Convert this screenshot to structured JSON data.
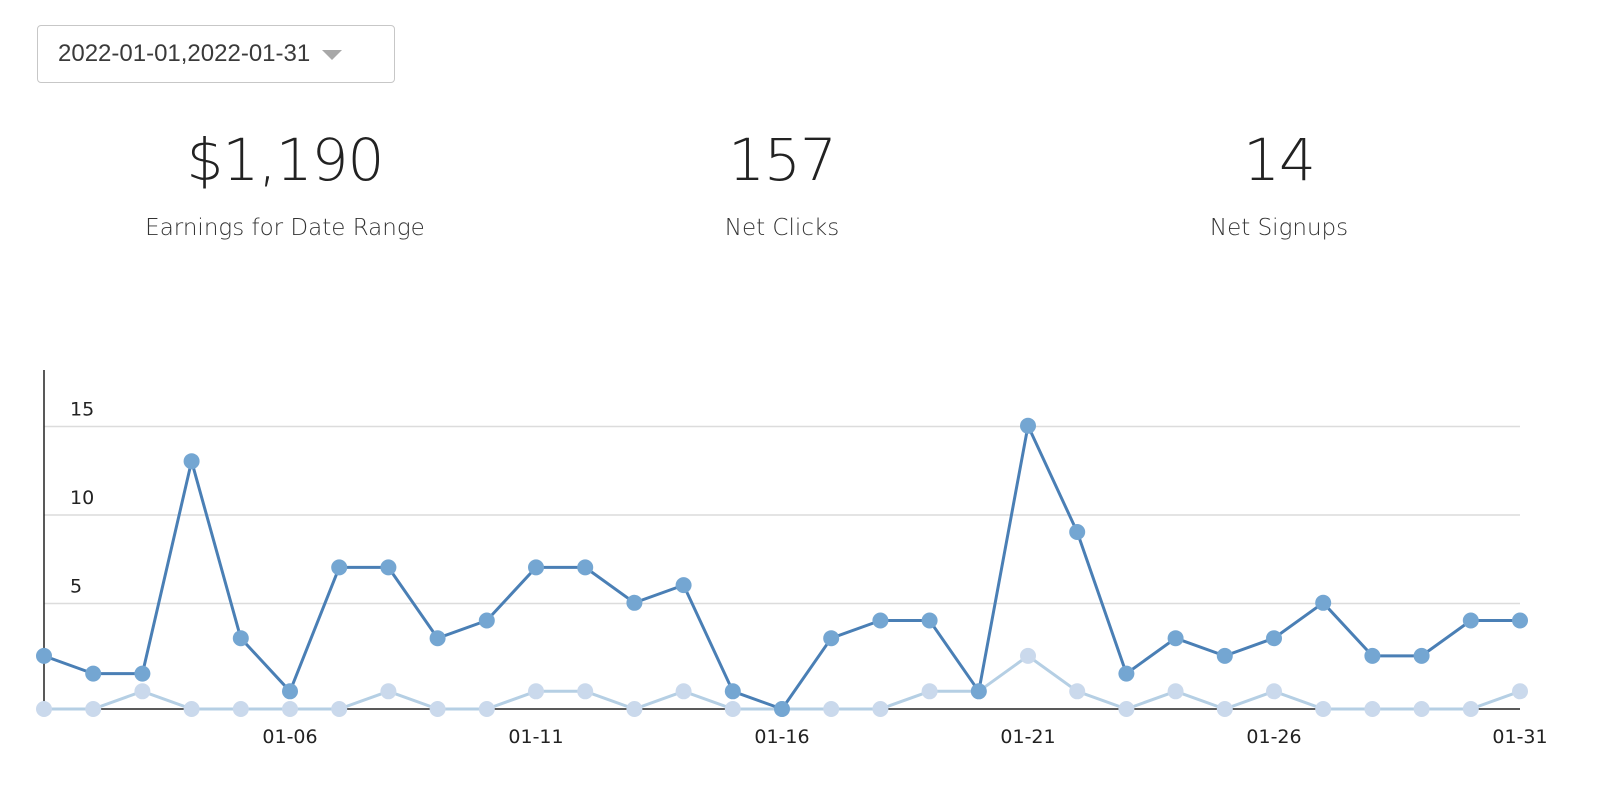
{
  "date_range": {
    "value": "2022-01-01,2022-01-31",
    "caret_icon": "chevron-down-icon"
  },
  "stats": [
    {
      "value": "$1,190",
      "label": "Earnings for Date Range"
    },
    {
      "value": "157",
      "label": "Net Clicks"
    },
    {
      "value": "14",
      "label": "Net Signups"
    }
  ],
  "chart_data": {
    "type": "line",
    "x": [
      "01-01",
      "01-02",
      "01-03",
      "01-04",
      "01-05",
      "01-06",
      "01-07",
      "01-08",
      "01-09",
      "01-10",
      "01-11",
      "01-12",
      "01-13",
      "01-14",
      "01-15",
      "01-16",
      "01-17",
      "01-18",
      "01-19",
      "01-20",
      "01-21",
      "01-22",
      "01-23",
      "01-24",
      "01-25",
      "01-26",
      "01-27",
      "01-28",
      "01-29",
      "01-30",
      "01-31"
    ],
    "x_tick_labels": [
      "01-06",
      "01-11",
      "01-16",
      "01-21",
      "01-26",
      "01-31"
    ],
    "y_tick_labels": [
      "5",
      "10",
      "15"
    ],
    "ylim": [
      0,
      17
    ],
    "grid": true,
    "series": [
      {
        "color": "#4a7fb5",
        "marker_color": "#74a6d2",
        "values": [
          3,
          2,
          2,
          14,
          4,
          1,
          8,
          8,
          4,
          5,
          8,
          8,
          6,
          7,
          1,
          0,
          4,
          5,
          5,
          1,
          16,
          10,
          2,
          4,
          3,
          4,
          6,
          3,
          3,
          5,
          5
        ]
      },
      {
        "color": "#b5cfe4",
        "marker_color": "#cad9ec",
        "values": [
          0,
          0,
          1,
          0,
          0,
          0,
          0,
          1,
          0,
          0,
          1,
          1,
          0,
          1,
          0,
          0,
          0,
          0,
          1,
          1,
          3,
          1,
          0,
          1,
          0,
          1,
          0,
          0,
          0,
          0,
          1
        ]
      }
    ]
  }
}
